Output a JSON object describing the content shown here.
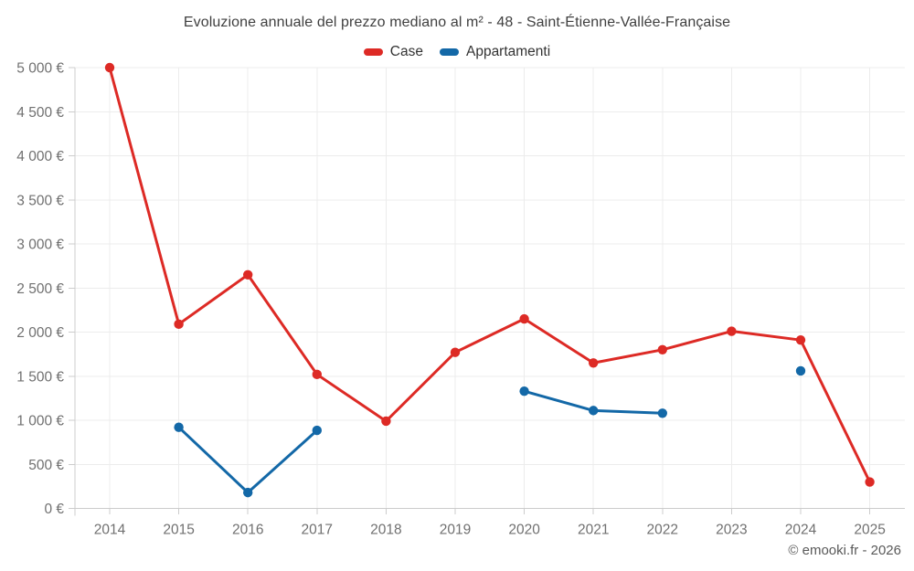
{
  "chart_data": {
    "type": "line",
    "title": "Evoluzione annuale del prezzo mediano al m² - 48 - Saint-Étienne-Vallée-Française",
    "x": [
      "2014",
      "2015",
      "2016",
      "2017",
      "2018",
      "2019",
      "2020",
      "2021",
      "2022",
      "2023",
      "2024",
      "2025"
    ],
    "xlabel": "",
    "ylabel": "",
    "ylim": [
      0,
      5000
    ],
    "ytick_step": 500,
    "y_tick_labels": [
      "0 €",
      "500 €",
      "1 000 €",
      "1 500 €",
      "2 000 €",
      "2 500 €",
      "3 000 €",
      "3 500 €",
      "4 000 €",
      "4 500 €",
      "5 000 €"
    ],
    "grid": true,
    "legend_position": "top",
    "series": [
      {
        "name": "Case",
        "color": "#dd2a25",
        "values": [
          5000,
          2090,
          2650,
          1520,
          990,
          1770,
          2150,
          1650,
          1800,
          2010,
          1910,
          300
        ]
      },
      {
        "name": "Appartamenti",
        "color": "#1368a7",
        "values": [
          null,
          920,
          180,
          885,
          null,
          null,
          1330,
          1110,
          1080,
          null,
          1560,
          null
        ]
      }
    ]
  },
  "colors": {
    "gridline": "#ececec",
    "axis": "#cccccc",
    "tick_label": "#707070"
  },
  "footer": {
    "credit": "© emooki.fr - 2026"
  }
}
